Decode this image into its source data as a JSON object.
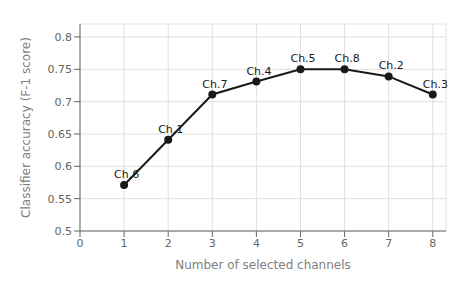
{
  "chart_data": {
    "type": "line",
    "x": [
      1,
      2,
      3,
      4,
      5,
      6,
      7,
      8
    ],
    "values": [
      0.571,
      0.641,
      0.711,
      0.731,
      0.75,
      0.75,
      0.739,
      0.711
    ],
    "annotations": [
      "Ch.6",
      "Ch.1",
      "Ch.7",
      "Ch.4",
      "Ch.5",
      "Ch.8",
      "Ch.2",
      "Ch.3"
    ],
    "xlabel": "Number of selected channels",
    "ylabel": "Classifier accuracy (F-1 score)",
    "xlim": [
      0,
      8.3
    ],
    "ylim": [
      0.5,
      0.82
    ],
    "xticks": [
      0,
      1,
      2,
      3,
      4,
      5,
      6,
      7,
      8
    ],
    "yticks": [
      0.5,
      0.55,
      0.6,
      0.65,
      0.7,
      0.75,
      0.8
    ],
    "color": "#1a1a1a",
    "marker": "circle",
    "grid": true
  }
}
